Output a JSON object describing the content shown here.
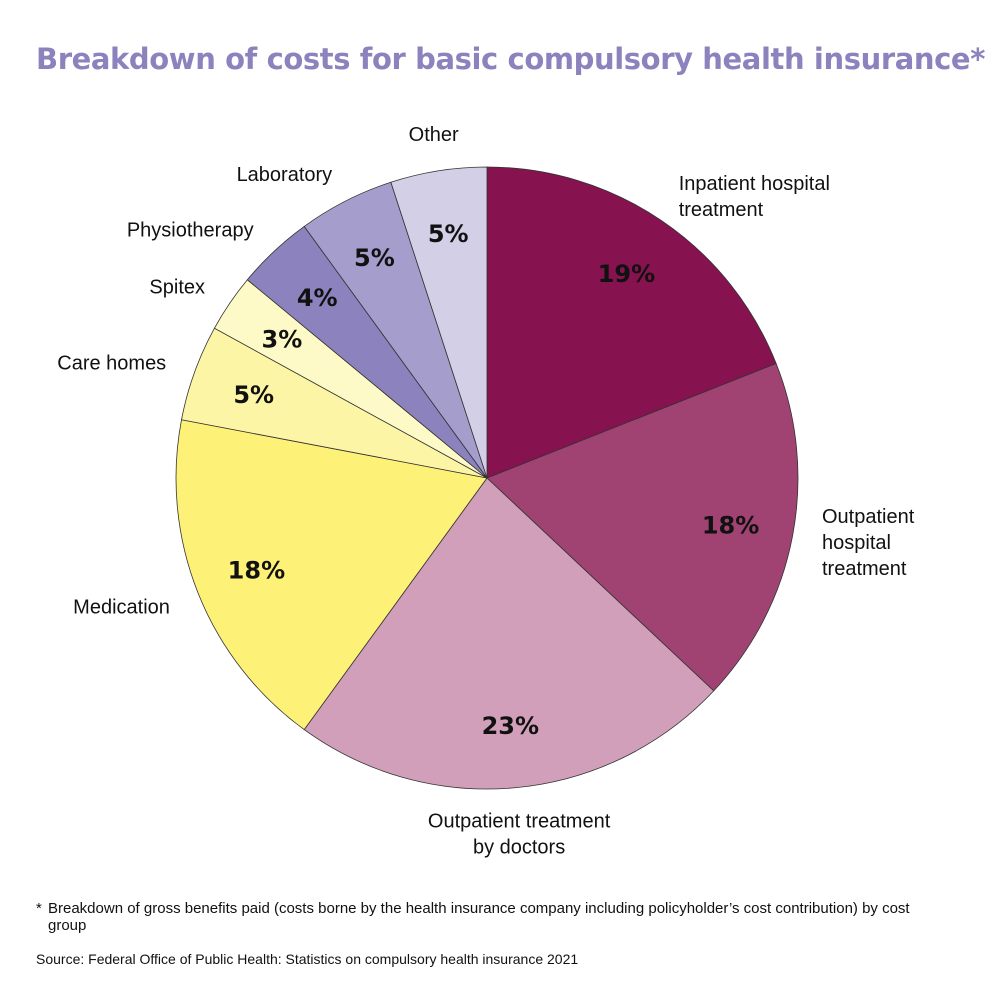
{
  "page": {
    "title": "Breakdown of costs for basic compulsory health insurance*",
    "footnote_marker": "*",
    "footnote": "Breakdown of gross benefits paid (costs borne by the health insurance company including policyholder’s cost contribution) by cost group",
    "source": "Source: Federal Office of Public Health: Statistics on compulsory health insurance 2021"
  },
  "colors": {
    "title": "#8c82bd"
  },
  "chart_data": {
    "type": "pie",
    "title": "Breakdown of costs for basic compulsory health insurance*",
    "unit": "%",
    "start": "12 o'clock",
    "direction": "clockwise",
    "slices": [
      {
        "label": "Inpatient hospital treatment",
        "label_lines": [
          "Inpatient hospital",
          "treatment"
        ],
        "value": 19,
        "value_label": "19%",
        "color": "#86124f"
      },
      {
        "label": "Outpatient hospital treatment",
        "label_lines": [
          "Outpatient",
          "hospital",
          "treatment"
        ],
        "value": 18,
        "value_label": "18%",
        "color": "#a04272"
      },
      {
        "label": "Outpatient treatment by doctors",
        "label_lines": [
          "Outpatient treatment",
          "by doctors"
        ],
        "value": 23,
        "value_label": "23%",
        "color": "#d19fb9"
      },
      {
        "label": "Medication",
        "label_lines": [
          "Medication"
        ],
        "value": 18,
        "value_label": "18%",
        "color": "#fdf177"
      },
      {
        "label": "Care homes",
        "label_lines": [
          "Care homes"
        ],
        "value": 5,
        "value_label": "5%",
        "color": "#fdf5a6"
      },
      {
        "label": "Spitex",
        "label_lines": [
          "Spitex"
        ],
        "value": 3,
        "value_label": "3%",
        "color": "#fefac7"
      },
      {
        "label": "Physiotherapy",
        "label_lines": [
          "Physiotherapy"
        ],
        "value": 4,
        "value_label": "4%",
        "color": "#8c82bd"
      },
      {
        "label": "Laboratory",
        "label_lines": [
          "Laboratory"
        ],
        "value": 5,
        "value_label": "5%",
        "color": "#a59dcb"
      },
      {
        "label": "Other",
        "label_lines": [
          "Other"
        ],
        "value": 5,
        "value_label": "5%",
        "color": "#d3cfe6"
      }
    ]
  }
}
